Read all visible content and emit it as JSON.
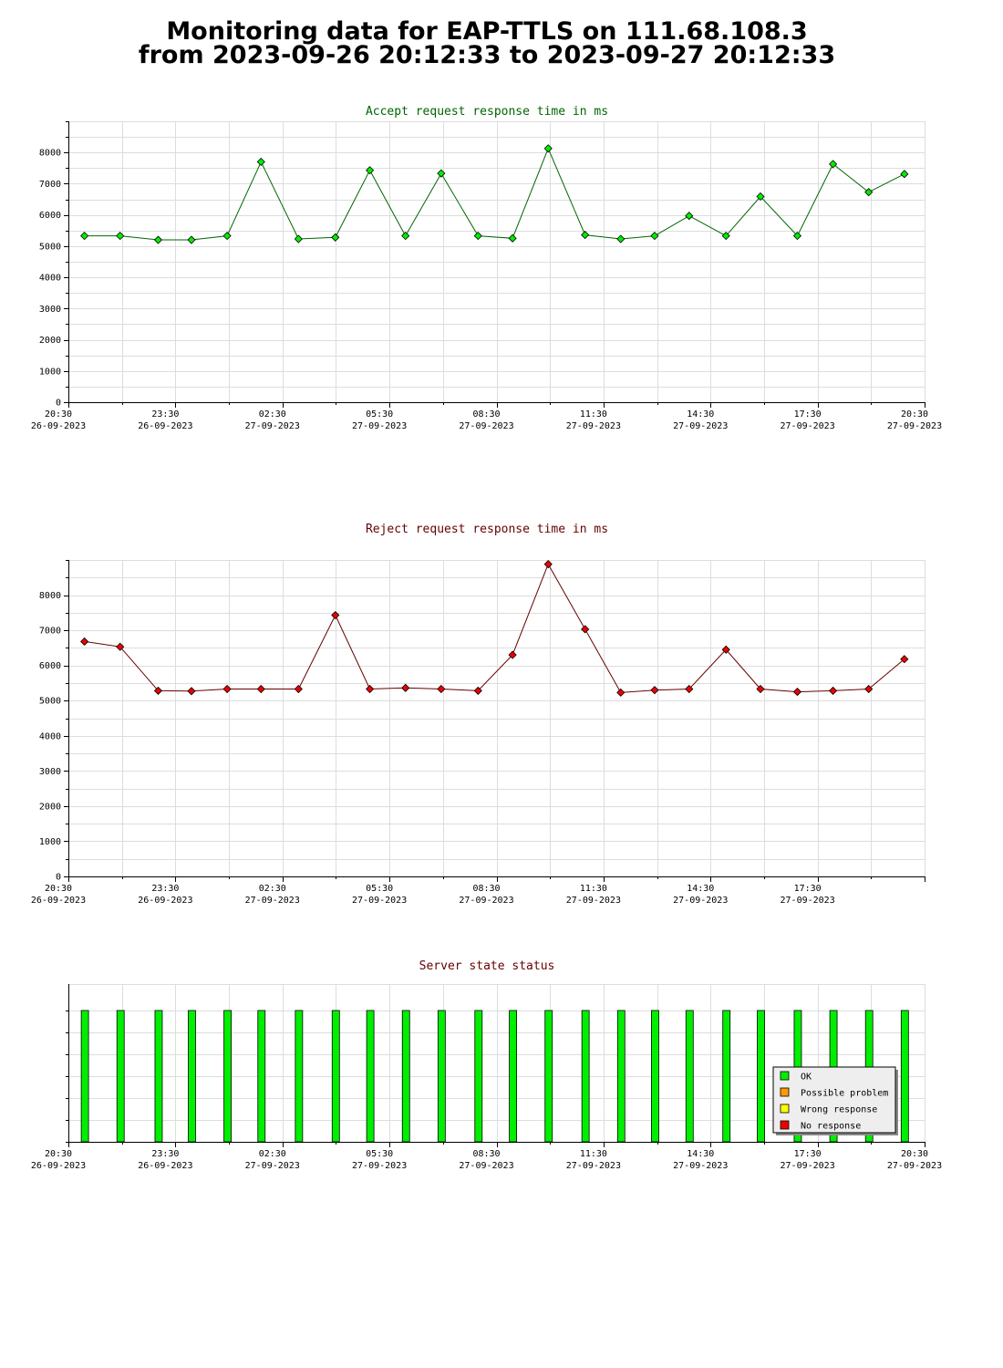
{
  "title": {
    "line1": "Monitoring data for EAP-TTLS on 111.68.108.3",
    "line2": "from 2023-09-26 20:12:33 to 2023-09-27 20:12:33"
  },
  "colors": {
    "accept_title": "#006600",
    "reject_title": "#660000",
    "status_title": "#660000",
    "accept_line": "#006600",
    "accept_marker": "#00ee00",
    "reject_line": "#660000",
    "reject_marker": "#ee0000"
  },
  "chart_data": [
    {
      "type": "line",
      "title": "Accept request response time in ms",
      "ylim": [
        0,
        9000
      ],
      "yticks": [
        0,
        1000,
        2000,
        3000,
        4000,
        5000,
        6000,
        7000,
        8000
      ],
      "x_time_range": [
        "2023-09-26 20:30",
        "2023-09-27 20:30"
      ],
      "xtick_labels": [
        [
          "20:30",
          "26-09-2023"
        ],
        [
          "23:30",
          "26-09-2023"
        ],
        [
          "02:30",
          "27-09-2023"
        ],
        [
          "05:30",
          "27-09-2023"
        ],
        [
          "08:30",
          "27-09-2023"
        ],
        [
          "11:30",
          "27-09-2023"
        ],
        [
          "14:30",
          "27-09-2023"
        ],
        [
          "17:30",
          "27-09-2023"
        ],
        [
          "20:30",
          "27-09-2023"
        ]
      ],
      "grid": true,
      "x": [
        "20:57",
        "21:57",
        "23:01",
        "23:57",
        "00:57",
        "01:54",
        "02:57",
        "03:59",
        "04:57",
        "05:57",
        "06:57",
        "07:59",
        "08:57",
        "09:57",
        "10:59",
        "11:59",
        "12:56",
        "13:54",
        "14:56",
        "15:54",
        "16:56",
        "17:56",
        "18:56",
        "19:56"
      ],
      "values": [
        5330,
        5330,
        5200,
        5200,
        5330,
        7700,
        5230,
        5280,
        7430,
        5330,
        7330,
        5330,
        5250,
        8130,
        5360,
        5230,
        5330,
        5970,
        5330,
        6590,
        5330,
        7630,
        6730,
        7310
      ]
    },
    {
      "type": "line",
      "title": "Reject request response time in ms",
      "ylim": [
        0,
        9000
      ],
      "yticks": [
        0,
        1000,
        2000,
        3000,
        4000,
        5000,
        6000,
        7000,
        8000
      ],
      "x_time_range": [
        "2023-09-26 20:30",
        "2023-09-27 20:30"
      ],
      "xtick_labels": [
        [
          "20:30",
          "26-09-2023"
        ],
        [
          "23:30",
          "26-09-2023"
        ],
        [
          "02:30",
          "27-09-2023"
        ],
        [
          "05:30",
          "27-09-2023"
        ],
        [
          "08:30",
          "27-09-2023"
        ],
        [
          "11:30",
          "27-09-2023"
        ],
        [
          "14:30",
          "27-09-2023"
        ],
        [
          "17:30",
          "27-09-2023"
        ]
      ],
      "grid": true,
      "x": [
        "20:57",
        "21:57",
        "23:01",
        "23:57",
        "00:57",
        "01:54",
        "02:57",
        "03:59",
        "04:57",
        "05:57",
        "06:57",
        "07:59",
        "08:57",
        "09:57",
        "10:59",
        "11:59",
        "12:56",
        "13:54",
        "14:56",
        "15:54",
        "16:56",
        "17:56",
        "18:56",
        "19:56"
      ],
      "values": [
        6680,
        6530,
        5280,
        5270,
        5330,
        5330,
        5330,
        7430,
        5330,
        5360,
        5330,
        5280,
        6300,
        8880,
        7030,
        5230,
        5300,
        5330,
        6450,
        5330,
        5250,
        5280,
        5330,
        6180
      ]
    },
    {
      "type": "bar",
      "title": "Server state status",
      "x_time_range": [
        "2023-09-26 20:30",
        "2023-09-27 20:30"
      ],
      "xtick_labels": [
        [
          "20:30",
          "26-09-2023"
        ],
        [
          "23:30",
          "26-09-2023"
        ],
        [
          "02:30",
          "27-09-2023"
        ],
        [
          "05:30",
          "27-09-2023"
        ],
        [
          "08:30",
          "27-09-2023"
        ],
        [
          "11:30",
          "27-09-2023"
        ],
        [
          "14:30",
          "27-09-2023"
        ],
        [
          "17:30",
          "27-09-2023"
        ],
        [
          "20:30",
          "27-09-2023"
        ]
      ],
      "x": [
        "20:57",
        "21:57",
        "23:01",
        "23:57",
        "00:57",
        "01:54",
        "02:57",
        "03:59",
        "04:57",
        "05:57",
        "06:57",
        "07:59",
        "08:57",
        "09:57",
        "10:59",
        "11:59",
        "12:56",
        "13:54",
        "14:56",
        "15:54",
        "16:56",
        "17:56",
        "18:56",
        "19:56"
      ],
      "status": [
        "OK",
        "OK",
        "OK",
        "OK",
        "OK",
        "OK",
        "OK",
        "OK",
        "OK",
        "OK",
        "OK",
        "OK",
        "OK",
        "OK",
        "OK",
        "OK",
        "OK",
        "OK",
        "OK",
        "OK",
        "OK",
        "OK",
        "OK",
        "OK"
      ],
      "legend_position": "bottom-right",
      "legend": [
        {
          "label": "OK",
          "color": "#00ee00"
        },
        {
          "label": "Possible problem",
          "color": "#ff9900"
        },
        {
          "label": "Wrong response",
          "color": "#ffff00"
        },
        {
          "label": "No response",
          "color": "#ee0000"
        }
      ]
    }
  ]
}
